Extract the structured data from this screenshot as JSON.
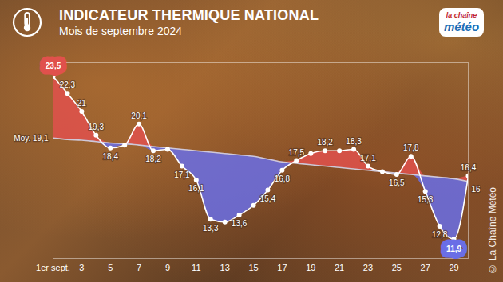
{
  "chart_data": {
    "type": "line",
    "title": "INDICATEUR THERMIQUE NATIONAL",
    "subtitle": "Mois de septembre 2024",
    "logo": [
      "la chaîne",
      "météo"
    ],
    "credit": "© La Chaîne Météo",
    "x": [
      1,
      2,
      3,
      4,
      5,
      6,
      7,
      8,
      9,
      10,
      11,
      12,
      13,
      14,
      15,
      16,
      17,
      18,
      19,
      20,
      21,
      22,
      23,
      24,
      25,
      26,
      27,
      28,
      29,
      30
    ],
    "xlim": [
      1,
      30
    ],
    "xticks": [
      {
        "value": 1,
        "label": "1er sept."
      },
      3,
      5,
      7,
      9,
      11,
      13,
      15,
      17,
      19,
      21,
      23,
      25,
      27,
      29
    ],
    "ylim": [
      10.5,
      24.5
    ],
    "tick_labels": "x",
    "grid": false,
    "data_labels": true,
    "series": [
      {
        "color": "#ffffff",
        "values": [
          23.5,
          22.3,
          21,
          19.3,
          18.4,
          18.6,
          20.1,
          18.2,
          18.3,
          17.1,
          16.1,
          13.3,
          13.1,
          13.6,
          14.3,
          15.4,
          16.8,
          17.5,
          18.0,
          18.2,
          18.2,
          18.3,
          17.1,
          16.7,
          16.5,
          17.8,
          15.3,
          12.8,
          11.9,
          16.4
        ],
        "value_labels": [
          "23,5",
          "22,3",
          "21",
          "19,3",
          "18,4",
          null,
          "20,1",
          "18,2",
          null,
          "17,1",
          "16,1",
          "13,3",
          null,
          "13,6",
          null,
          "15,4",
          "16,8",
          "17,5",
          null,
          "18,2",
          null,
          "18,3",
          "17,1",
          null,
          "16,5",
          "17,8",
          "15,3",
          "12,8",
          "11,9",
          "16,4"
        ]
      },
      {
        "color": "#cfc8d8",
        "values": [
          19.1,
          19.0,
          18.95,
          18.85,
          18.75,
          18.7,
          18.6,
          18.5,
          18.4,
          18.3,
          18.2,
          18.1,
          18.0,
          17.9,
          17.8,
          17.6,
          17.4,
          17.3,
          17.2,
          17.1,
          17.0,
          16.9,
          16.8,
          16.7,
          16.6,
          16.5,
          16.4,
          16.3,
          16.2,
          16.0
        ],
        "value_labels": [
          "Moy. 19,1",
          null,
          null,
          null,
          null,
          null,
          null,
          null,
          null,
          null,
          null,
          null,
          null,
          null,
          null,
          null,
          null,
          null,
          null,
          null,
          null,
          null,
          null,
          null,
          null,
          null,
          null,
          null,
          null,
          "16"
        ]
      }
    ]
  }
}
